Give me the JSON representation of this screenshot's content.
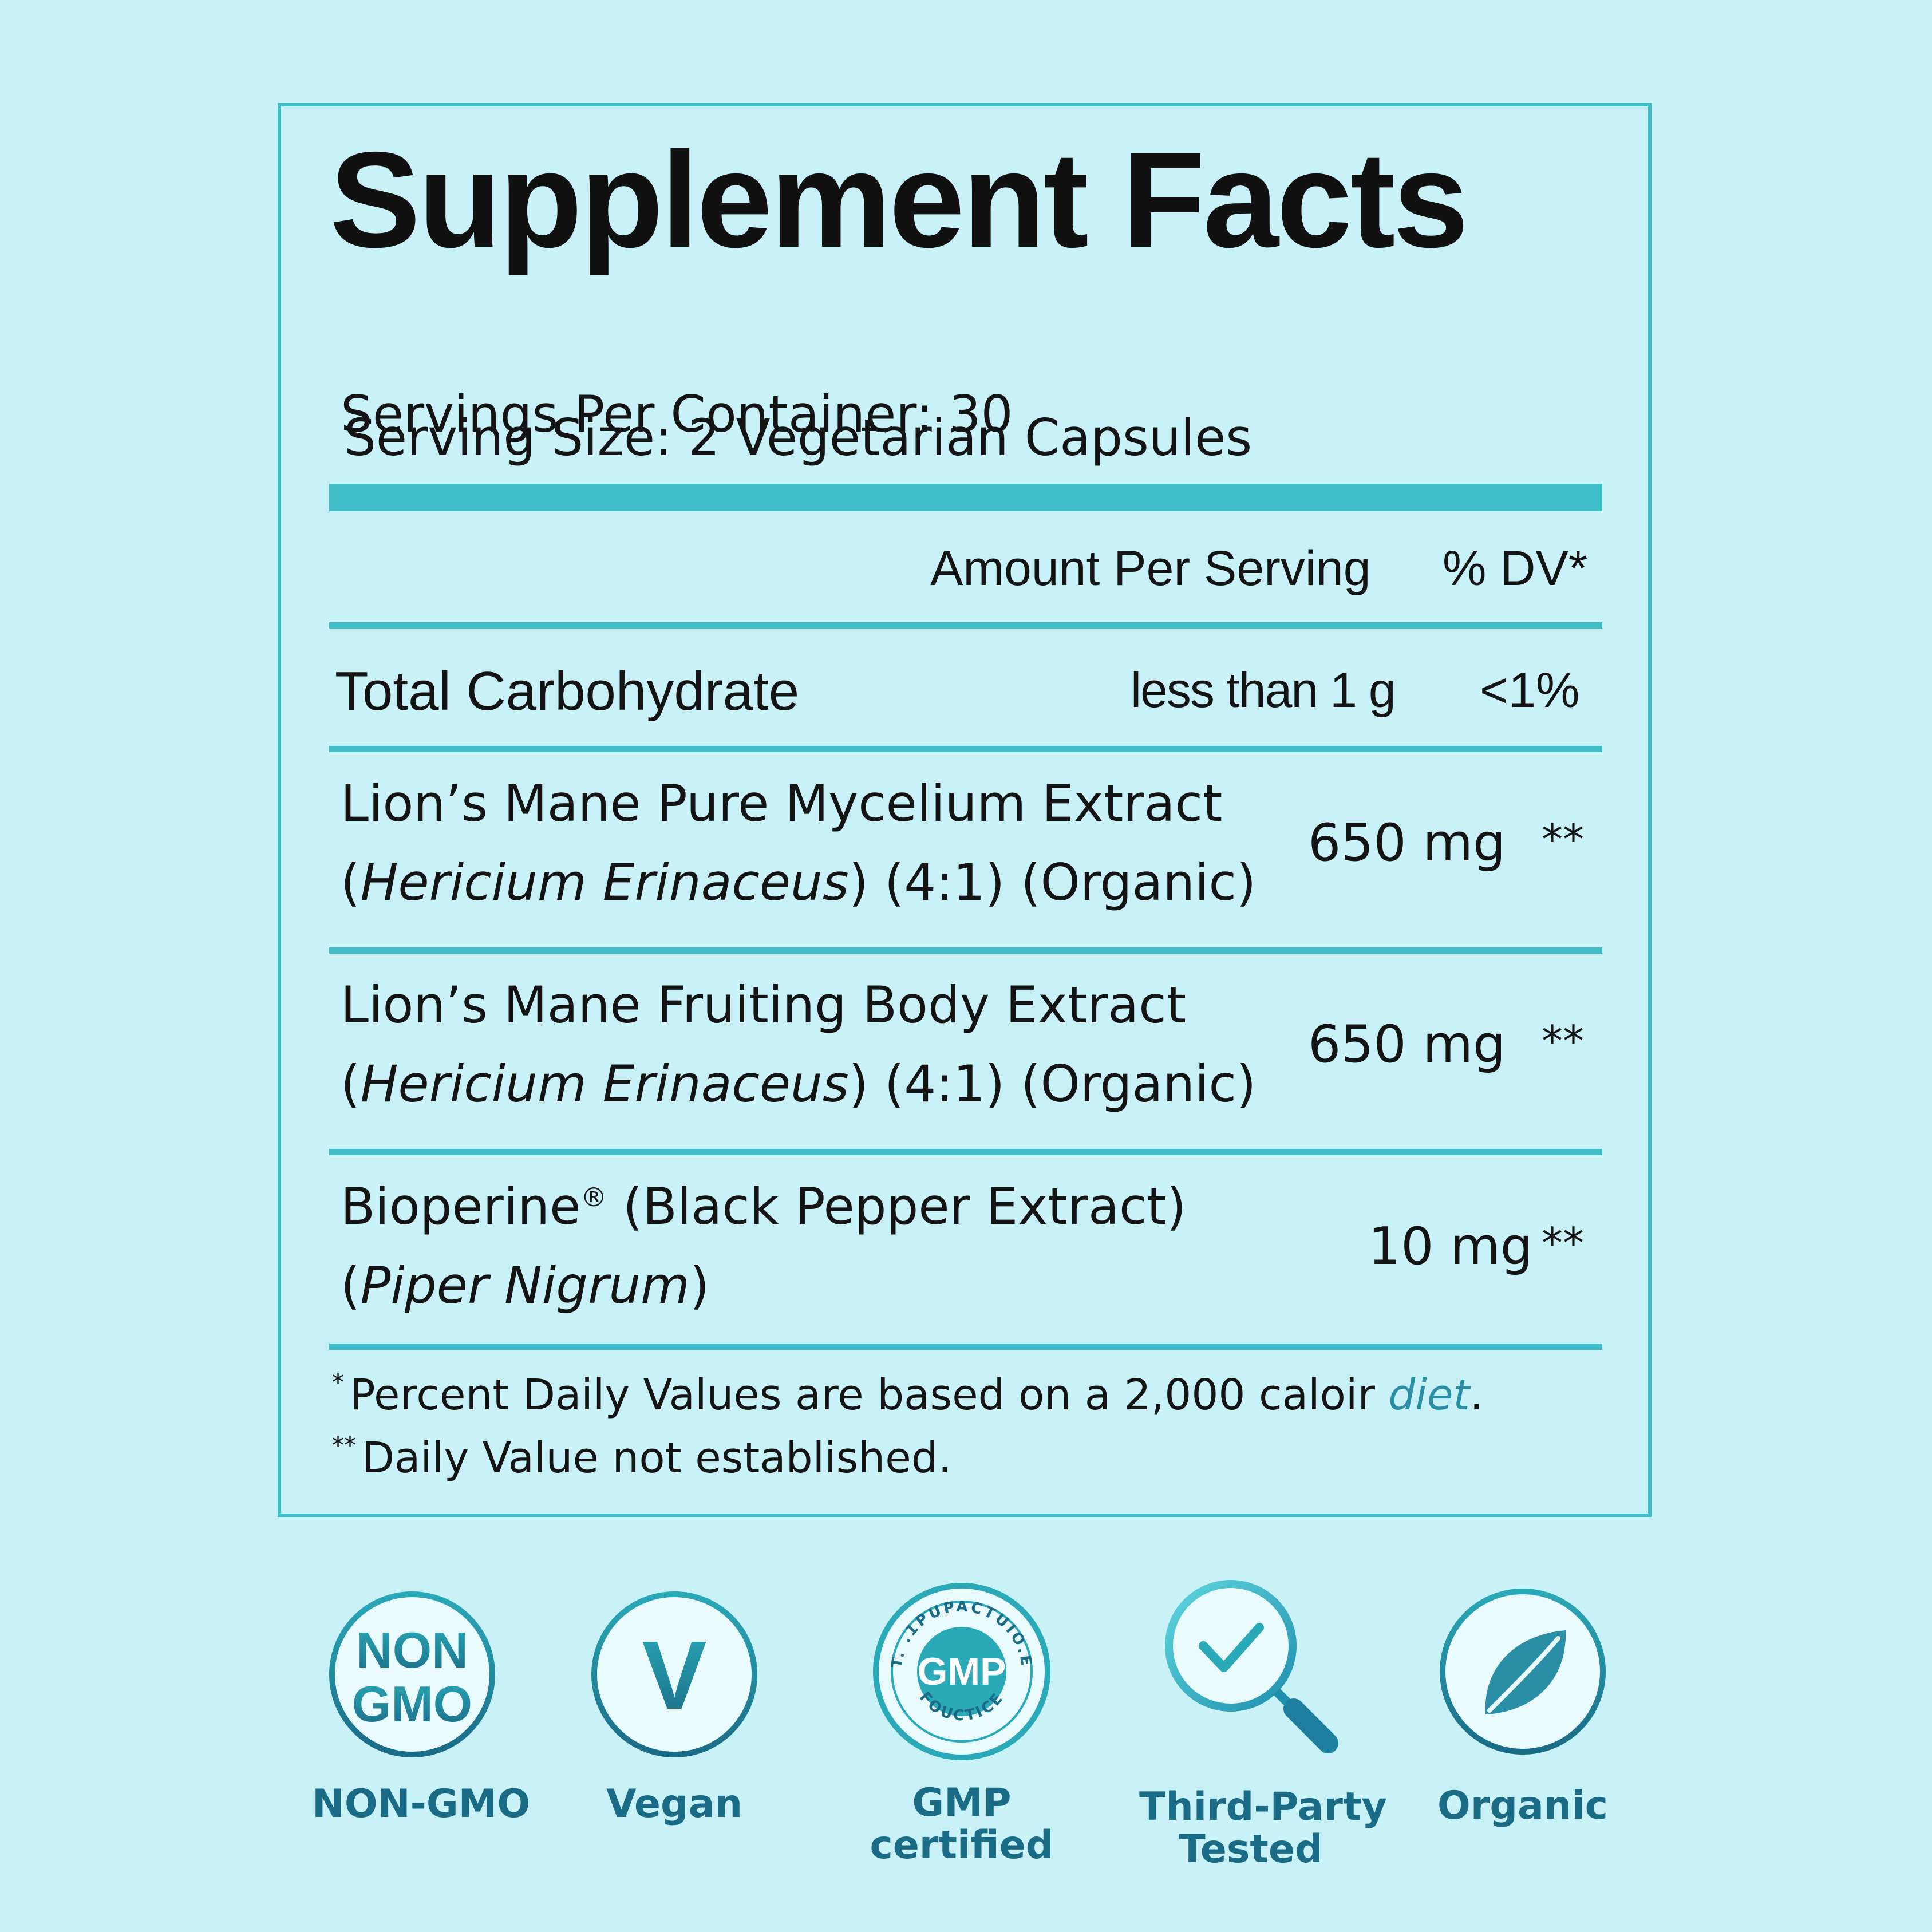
{
  "facts": {
    "title": "Supplement Facts",
    "serving_size": "Serving Size: 2 Vegetarian Capsules",
    "servings_per_container": "Servings Per Container: 30",
    "header_amount": "Amount Per Serving",
    "header_dv": "% DV*",
    "rows": [
      {
        "line1": "Total Carbohydrate",
        "amount": "less than 1 g",
        "dv": "<1%"
      },
      {
        "line1": "Lion’s Mane Pure Mycelium Extract",
        "line2_open": "(",
        "line2_italic": "Hericium Erinaceus",
        "line2_rest": ") (4:1) (Organic)",
        "amount": "650 mg",
        "dv": "**"
      },
      {
        "line1": "Lion’s Mane Fruiting Body Extract",
        "line2_open": "(",
        "line2_italic": "Hericium Erinaceus",
        "line2_rest": ") (4:1) (Organic)",
        "amount": "650 mg",
        "dv": "**"
      },
      {
        "line1_main": "Bioperine",
        "line1_reg": "®",
        "line1_rest": " (Black Pepper Extract)",
        "line2_open": "(",
        "line2_italic": "Piper Nigrum",
        "line2_rest": ")",
        "amount": "10 mg",
        "dv": "**"
      }
    ],
    "footnote1_mark": "*",
    "footnote1_text": "Percent Daily Values are based on a 2,000 caloir ",
    "footnote1_diet": "diet",
    "footnote1_end": ".",
    "footnote2_mark": "**",
    "footnote2_text": "Daily Value not established."
  },
  "badges": [
    {
      "icon": "non-gmo-icon",
      "icon_text_1": "NON",
      "icon_text_2": "GMO",
      "label": "NON-GMO"
    },
    {
      "icon": "vegan-v-icon",
      "icon_text": "V",
      "label": "Vegan"
    },
    {
      "icon": "gmp-seal-icon",
      "icon_text": "GMP",
      "ring_top": "T. .1PUPACTUIO.E",
      "ring_bottom": "FOUCTICE",
      "label_1": "GMP",
      "label_2": "certified"
    },
    {
      "icon": "magnifier-check-icon",
      "label_1": "Third-Party",
      "label_2": "Tested"
    },
    {
      "icon": "leaf-icon",
      "label": "Organic"
    }
  ],
  "colors": {
    "background": "#c9f2f8",
    "accent": "#3fbec9",
    "badge_dark": "#1a6b86",
    "badge_teal": "#2a8fa6"
  }
}
